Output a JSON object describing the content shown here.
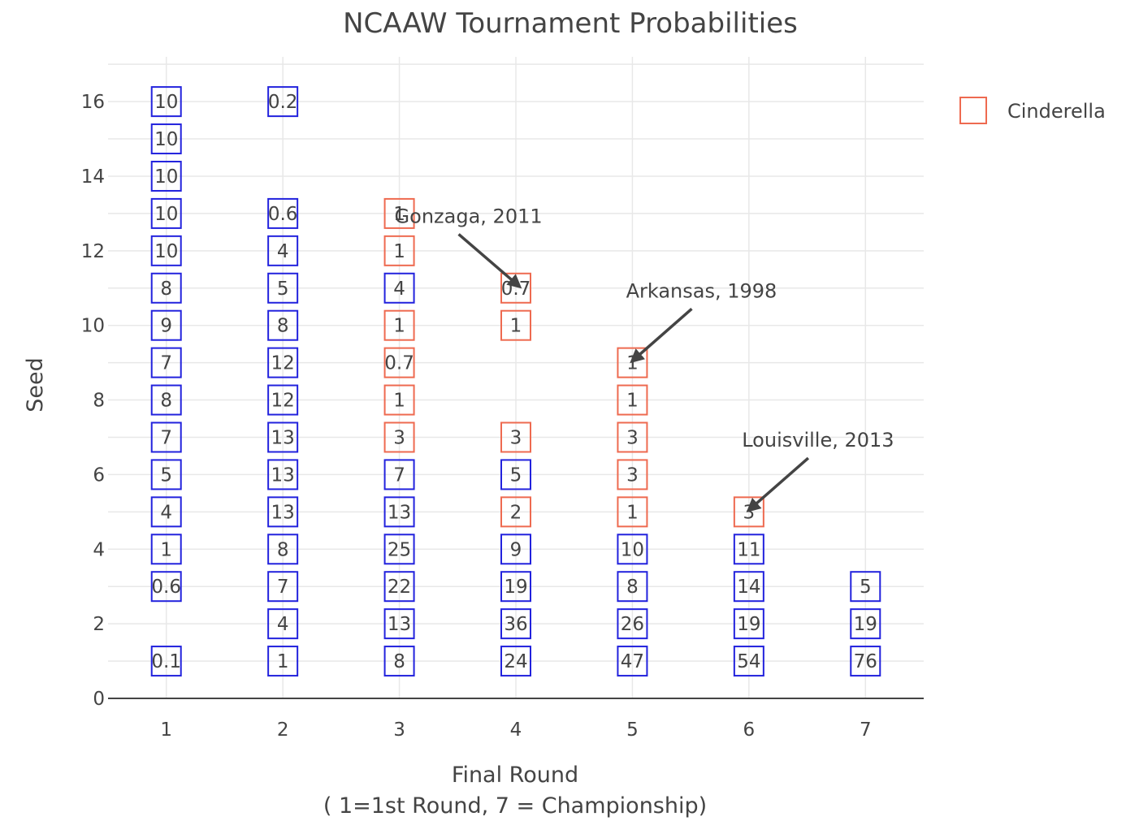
{
  "chart_data": {
    "type": "scatter",
    "title": "NCAAW Tournament Probabilities",
    "xlabel_line1": "Final Round",
    "xlabel_line2": "( 1=1st Round, 7 = Championship)",
    "ylabel": "Seed",
    "xlim": [
      0.5,
      7.5
    ],
    "ylim": [
      0,
      17.2
    ],
    "xticks": [
      1,
      2,
      3,
      4,
      5,
      6,
      7
    ],
    "yticks": [
      0,
      2,
      4,
      6,
      8,
      10,
      12,
      14,
      16
    ],
    "grid": true,
    "legend": {
      "label": "Cinderella",
      "placement": "top-right"
    },
    "colors": {
      "regular": "#2222dd",
      "cinderella": "#ee6a50",
      "axis": "#444444",
      "grid": "#e8e8e8"
    },
    "points": [
      {
        "x": 1,
        "y": 16,
        "label": "10",
        "cinderella": false
      },
      {
        "x": 1,
        "y": 15,
        "label": "10",
        "cinderella": false
      },
      {
        "x": 1,
        "y": 14,
        "label": "10",
        "cinderella": false
      },
      {
        "x": 1,
        "y": 13,
        "label": "10",
        "cinderella": false
      },
      {
        "x": 1,
        "y": 12,
        "label": "10",
        "cinderella": false
      },
      {
        "x": 1,
        "y": 11,
        "label": "8",
        "cinderella": false
      },
      {
        "x": 1,
        "y": 10,
        "label": "9",
        "cinderella": false
      },
      {
        "x": 1,
        "y": 9,
        "label": "7",
        "cinderella": false
      },
      {
        "x": 1,
        "y": 8,
        "label": "8",
        "cinderella": false
      },
      {
        "x": 1,
        "y": 7,
        "label": "7",
        "cinderella": false
      },
      {
        "x": 1,
        "y": 6,
        "label": "5",
        "cinderella": false
      },
      {
        "x": 1,
        "y": 5,
        "label": "4",
        "cinderella": false
      },
      {
        "x": 1,
        "y": 4,
        "label": "1",
        "cinderella": false
      },
      {
        "x": 1,
        "y": 3,
        "label": "0.6",
        "cinderella": false
      },
      {
        "x": 1,
        "y": 1,
        "label": "0.1",
        "cinderella": false
      },
      {
        "x": 2,
        "y": 16,
        "label": "0.2",
        "cinderella": false
      },
      {
        "x": 2,
        "y": 13,
        "label": "0.6",
        "cinderella": false
      },
      {
        "x": 2,
        "y": 12,
        "label": "4",
        "cinderella": false
      },
      {
        "x": 2,
        "y": 11,
        "label": "5",
        "cinderella": false
      },
      {
        "x": 2,
        "y": 10,
        "label": "8",
        "cinderella": false
      },
      {
        "x": 2,
        "y": 9,
        "label": "12",
        "cinderella": false
      },
      {
        "x": 2,
        "y": 8,
        "label": "12",
        "cinderella": false
      },
      {
        "x": 2,
        "y": 7,
        "label": "13",
        "cinderella": false
      },
      {
        "x": 2,
        "y": 6,
        "label": "13",
        "cinderella": false
      },
      {
        "x": 2,
        "y": 5,
        "label": "13",
        "cinderella": false
      },
      {
        "x": 2,
        "y": 4,
        "label": "8",
        "cinderella": false
      },
      {
        "x": 2,
        "y": 3,
        "label": "7",
        "cinderella": false
      },
      {
        "x": 2,
        "y": 2,
        "label": "4",
        "cinderella": false
      },
      {
        "x": 2,
        "y": 1,
        "label": "1",
        "cinderella": false
      },
      {
        "x": 3,
        "y": 13,
        "label": "1",
        "cinderella": true
      },
      {
        "x": 3,
        "y": 12,
        "label": "1",
        "cinderella": true
      },
      {
        "x": 3,
        "y": 11,
        "label": "4",
        "cinderella": false
      },
      {
        "x": 3,
        "y": 10,
        "label": "1",
        "cinderella": true
      },
      {
        "x": 3,
        "y": 9,
        "label": "0.7",
        "cinderella": true
      },
      {
        "x": 3,
        "y": 8,
        "label": "1",
        "cinderella": true
      },
      {
        "x": 3,
        "y": 7,
        "label": "3",
        "cinderella": true
      },
      {
        "x": 3,
        "y": 6,
        "label": "7",
        "cinderella": false
      },
      {
        "x": 3,
        "y": 5,
        "label": "13",
        "cinderella": false
      },
      {
        "x": 3,
        "y": 4,
        "label": "25",
        "cinderella": false
      },
      {
        "x": 3,
        "y": 3,
        "label": "22",
        "cinderella": false
      },
      {
        "x": 3,
        "y": 2,
        "label": "13",
        "cinderella": false
      },
      {
        "x": 3,
        "y": 1,
        "label": "8",
        "cinderella": false
      },
      {
        "x": 4,
        "y": 11,
        "label": "0.7",
        "cinderella": true
      },
      {
        "x": 4,
        "y": 10,
        "label": "1",
        "cinderella": true
      },
      {
        "x": 4,
        "y": 7,
        "label": "3",
        "cinderella": true
      },
      {
        "x": 4,
        "y": 6,
        "label": "5",
        "cinderella": false
      },
      {
        "x": 4,
        "y": 5,
        "label": "2",
        "cinderella": true
      },
      {
        "x": 4,
        "y": 4,
        "label": "9",
        "cinderella": false
      },
      {
        "x": 4,
        "y": 3,
        "label": "19",
        "cinderella": false
      },
      {
        "x": 4,
        "y": 2,
        "label": "36",
        "cinderella": false
      },
      {
        "x": 4,
        "y": 1,
        "label": "24",
        "cinderella": false
      },
      {
        "x": 5,
        "y": 9,
        "label": "1",
        "cinderella": true
      },
      {
        "x": 5,
        "y": 8,
        "label": "1",
        "cinderella": true
      },
      {
        "x": 5,
        "y": 7,
        "label": "3",
        "cinderella": true
      },
      {
        "x": 5,
        "y": 6,
        "label": "3",
        "cinderella": true
      },
      {
        "x": 5,
        "y": 5,
        "label": "1",
        "cinderella": true
      },
      {
        "x": 5,
        "y": 4,
        "label": "10",
        "cinderella": false
      },
      {
        "x": 5,
        "y": 3,
        "label": "8",
        "cinderella": false
      },
      {
        "x": 5,
        "y": 2,
        "label": "26",
        "cinderella": false
      },
      {
        "x": 5,
        "y": 1,
        "label": "47",
        "cinderella": false
      },
      {
        "x": 6,
        "y": 5,
        "label": "3",
        "cinderella": true
      },
      {
        "x": 6,
        "y": 4,
        "label": "11",
        "cinderella": false
      },
      {
        "x": 6,
        "y": 3,
        "label": "14",
        "cinderella": false
      },
      {
        "x": 6,
        "y": 2,
        "label": "19",
        "cinderella": false
      },
      {
        "x": 6,
        "y": 1,
        "label": "54",
        "cinderella": false
      },
      {
        "x": 7,
        "y": 3,
        "label": "5",
        "cinderella": false
      },
      {
        "x": 7,
        "y": 2,
        "label": "19",
        "cinderella": false
      },
      {
        "x": 7,
        "y": 1,
        "label": "76",
        "cinderella": false
      }
    ],
    "annotations": [
      {
        "text": "Gonzaga, 2011",
        "x": 4,
        "y": 11,
        "text_x": 3.3,
        "text_y": 12.4
      },
      {
        "text": "Arkansas, 1998",
        "x": 5,
        "y": 9,
        "text_x": 5.3,
        "text_y": 10.4
      },
      {
        "text": "Louisville, 2013",
        "x": 6,
        "y": 5,
        "text_x": 6.3,
        "text_y": 6.4
      }
    ]
  }
}
